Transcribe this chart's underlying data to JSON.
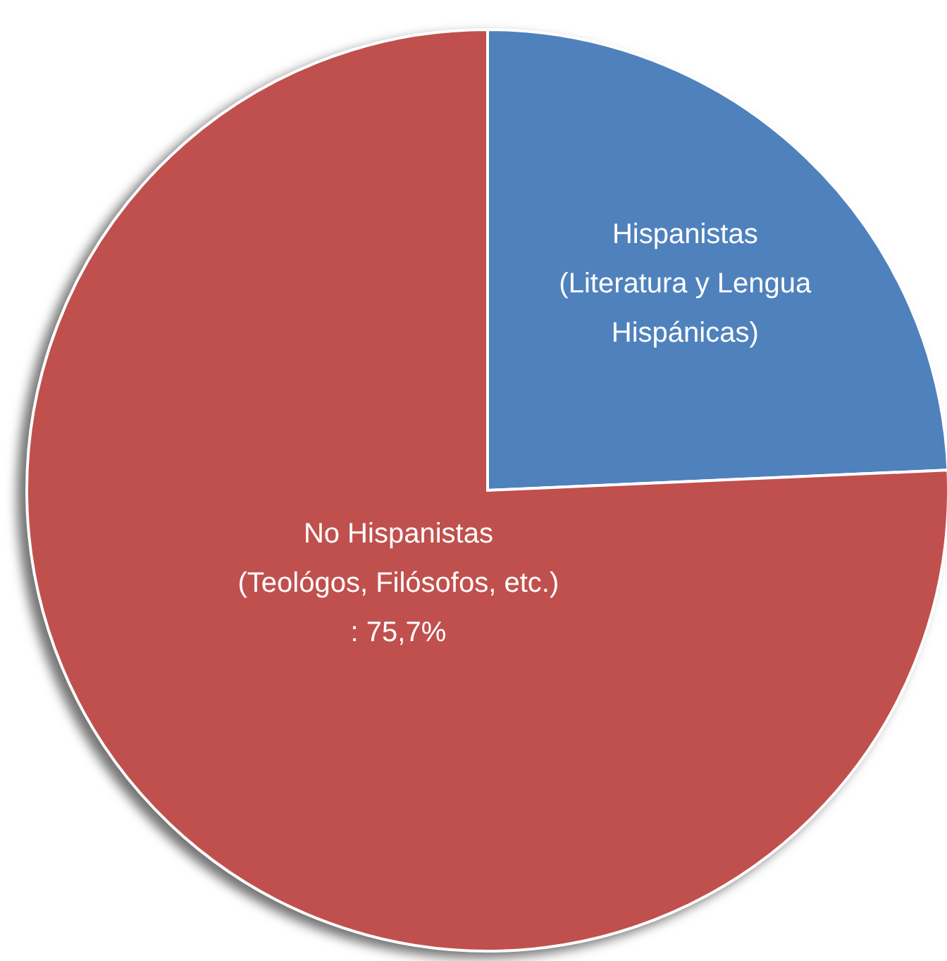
{
  "chart_data": {
    "type": "pie",
    "categories": [
      "Hispanistas\n(Literatura y Lengua\nHispánicas)",
      "No Hispanistas\n(Teológos, Filósofos, etc.)"
    ],
    "values": [
      24.3,
      75.7
    ],
    "colors": [
      "#4f81bd",
      "#c0504d"
    ],
    "value_labels": [
      null,
      ": 75,7%"
    ]
  }
}
